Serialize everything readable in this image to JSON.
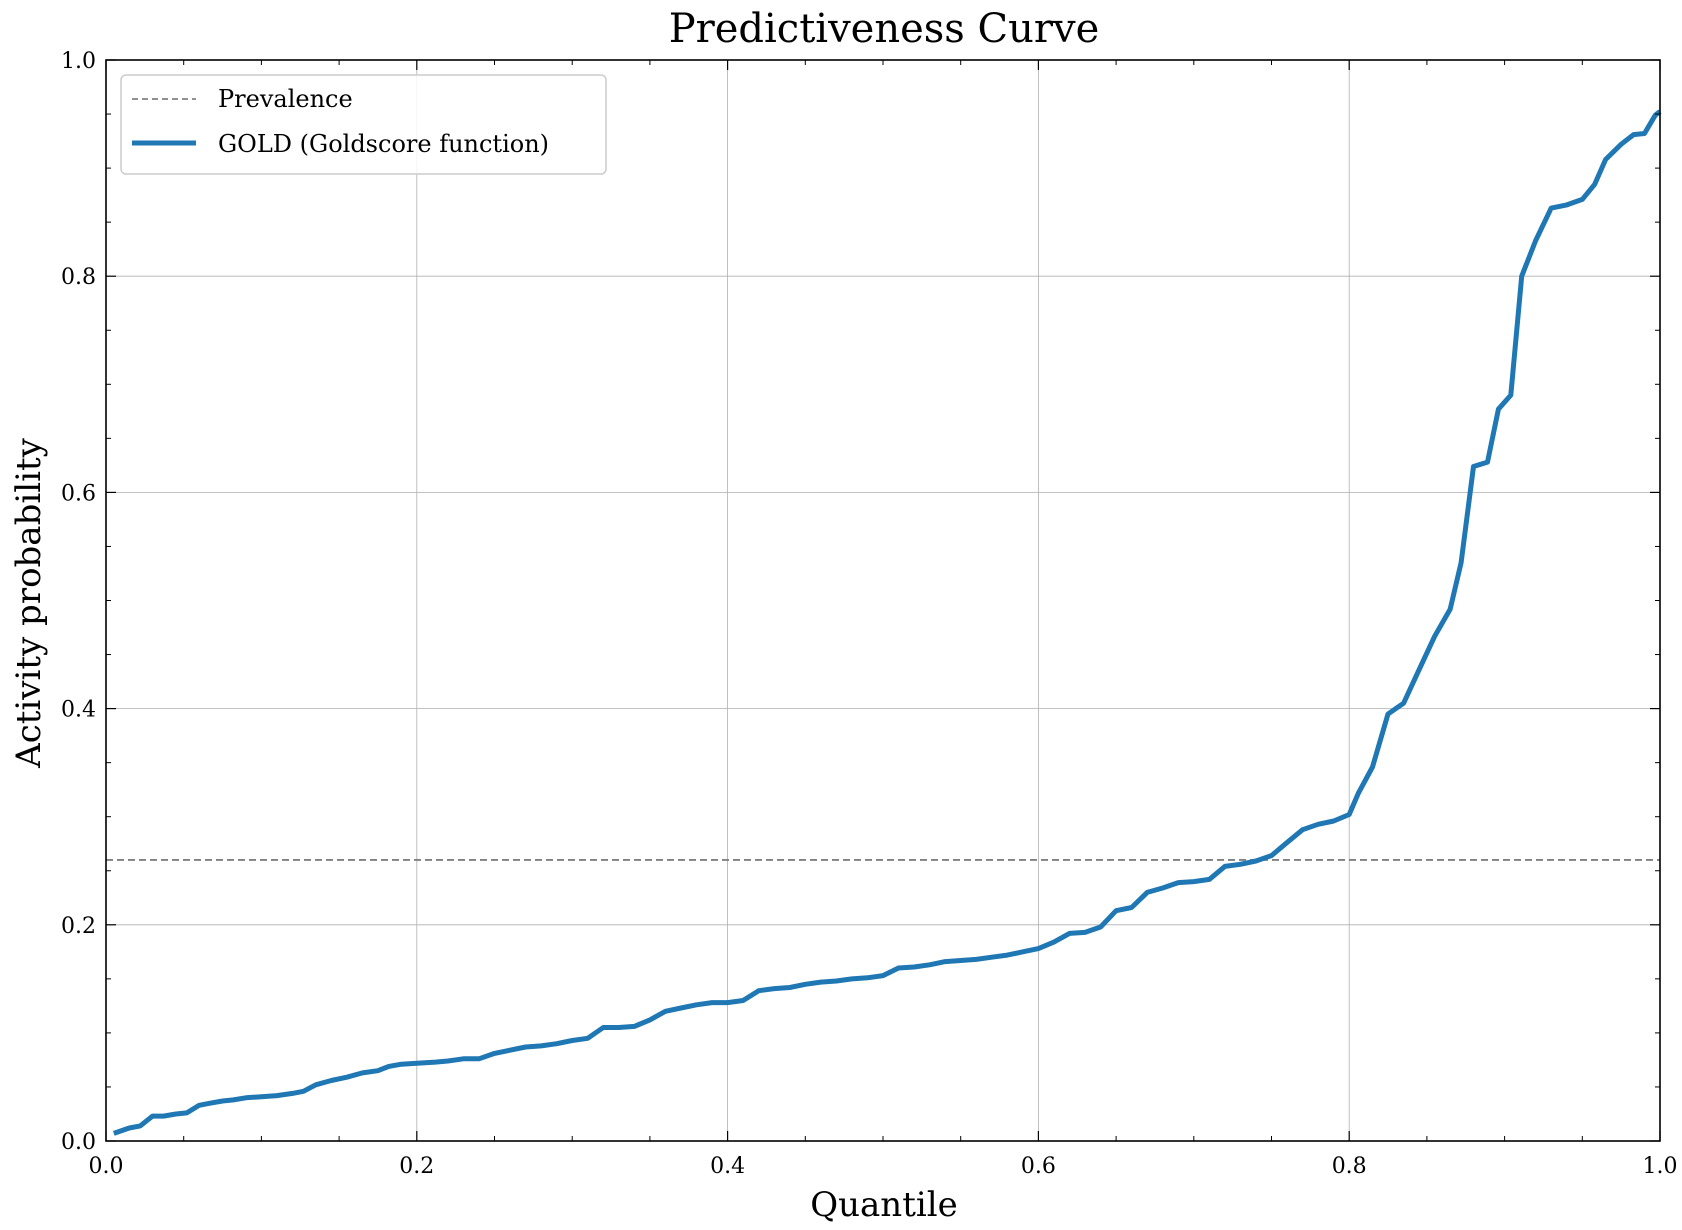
{
  "chart_data": {
    "type": "line",
    "title": "Predictiveness Curve",
    "xlabel": "Quantile",
    "ylabel": "Activity probability",
    "xlim": [
      0.0,
      1.0
    ],
    "ylim": [
      0.0,
      1.0
    ],
    "x_ticks": [
      "0.0",
      "0.2",
      "0.4",
      "0.6",
      "0.8",
      "1.0"
    ],
    "y_ticks": [
      "0.0",
      "0.2",
      "0.4",
      "0.6",
      "0.8",
      "1.0"
    ],
    "grid": true,
    "legend_position": "top-left",
    "prevalence": {
      "name": "Prevalence",
      "y": 0.26,
      "color": "#808080",
      "style": "dashed"
    },
    "series": [
      {
        "name": "GOLD (Goldscore function)",
        "color": "#1f77b4",
        "points": [
          [
            0.005,
            0.007
          ],
          [
            0.015,
            0.012
          ],
          [
            0.022,
            0.014
          ],
          [
            0.03,
            0.023
          ],
          [
            0.037,
            0.023
          ],
          [
            0.045,
            0.025
          ],
          [
            0.052,
            0.026
          ],
          [
            0.06,
            0.033
          ],
          [
            0.067,
            0.035
          ],
          [
            0.075,
            0.037
          ],
          [
            0.082,
            0.038
          ],
          [
            0.09,
            0.04
          ],
          [
            0.1,
            0.041
          ],
          [
            0.11,
            0.042
          ],
          [
            0.12,
            0.044
          ],
          [
            0.127,
            0.046
          ],
          [
            0.135,
            0.052
          ],
          [
            0.145,
            0.056
          ],
          [
            0.155,
            0.059
          ],
          [
            0.165,
            0.063
          ],
          [
            0.175,
            0.065
          ],
          [
            0.182,
            0.069
          ],
          [
            0.19,
            0.071
          ],
          [
            0.2,
            0.072
          ],
          [
            0.212,
            0.073
          ],
          [
            0.22,
            0.074
          ],
          [
            0.23,
            0.076
          ],
          [
            0.24,
            0.076
          ],
          [
            0.25,
            0.081
          ],
          [
            0.26,
            0.084
          ],
          [
            0.27,
            0.087
          ],
          [
            0.28,
            0.088
          ],
          [
            0.29,
            0.09
          ],
          [
            0.3,
            0.093
          ],
          [
            0.31,
            0.095
          ],
          [
            0.32,
            0.105
          ],
          [
            0.33,
            0.105
          ],
          [
            0.34,
            0.106
          ],
          [
            0.35,
            0.112
          ],
          [
            0.36,
            0.12
          ],
          [
            0.37,
            0.123
          ],
          [
            0.38,
            0.126
          ],
          [
            0.39,
            0.128
          ],
          [
            0.4,
            0.128
          ],
          [
            0.41,
            0.13
          ],
          [
            0.42,
            0.139
          ],
          [
            0.43,
            0.141
          ],
          [
            0.44,
            0.142
          ],
          [
            0.45,
            0.145
          ],
          [
            0.46,
            0.147
          ],
          [
            0.47,
            0.148
          ],
          [
            0.48,
            0.15
          ],
          [
            0.49,
            0.151
          ],
          [
            0.5,
            0.153
          ],
          [
            0.51,
            0.16
          ],
          [
            0.52,
            0.161
          ],
          [
            0.53,
            0.163
          ],
          [
            0.54,
            0.166
          ],
          [
            0.55,
            0.167
          ],
          [
            0.56,
            0.168
          ],
          [
            0.57,
            0.17
          ],
          [
            0.58,
            0.172
          ],
          [
            0.59,
            0.175
          ],
          [
            0.6,
            0.178
          ],
          [
            0.61,
            0.184
          ],
          [
            0.62,
            0.192
          ],
          [
            0.63,
            0.193
          ],
          [
            0.64,
            0.198
          ],
          [
            0.65,
            0.213
          ],
          [
            0.66,
            0.216
          ],
          [
            0.67,
            0.23
          ],
          [
            0.68,
            0.234
          ],
          [
            0.69,
            0.239
          ],
          [
            0.7,
            0.24
          ],
          [
            0.71,
            0.242
          ],
          [
            0.72,
            0.254
          ],
          [
            0.73,
            0.256
          ],
          [
            0.74,
            0.259
          ],
          [
            0.75,
            0.264
          ],
          [
            0.76,
            0.276
          ],
          [
            0.77,
            0.288
          ],
          [
            0.78,
            0.293
          ],
          [
            0.79,
            0.296
          ],
          [
            0.8,
            0.302
          ],
          [
            0.806,
            0.322
          ],
          [
            0.815,
            0.346
          ],
          [
            0.825,
            0.395
          ],
          [
            0.835,
            0.405
          ],
          [
            0.845,
            0.436
          ],
          [
            0.855,
            0.467
          ],
          [
            0.865,
            0.492
          ],
          [
            0.872,
            0.535
          ],
          [
            0.88,
            0.624
          ],
          [
            0.889,
            0.628
          ],
          [
            0.896,
            0.677
          ],
          [
            0.904,
            0.69
          ],
          [
            0.911,
            0.8
          ],
          [
            0.92,
            0.833
          ],
          [
            0.93,
            0.863
          ],
          [
            0.94,
            0.866
          ],
          [
            0.95,
            0.871
          ],
          [
            0.958,
            0.885
          ],
          [
            0.965,
            0.908
          ],
          [
            0.975,
            0.922
          ],
          [
            0.983,
            0.931
          ],
          [
            0.99,
            0.932
          ],
          [
            0.997,
            0.949
          ],
          [
            1.005,
            0.958
          ],
          [
            1.013,
            0.966
          ],
          [
            1.02,
            0.98
          ],
          [
            1.028,
            0.983
          ],
          [
            1.036,
            0.993
          ]
        ]
      }
    ]
  }
}
